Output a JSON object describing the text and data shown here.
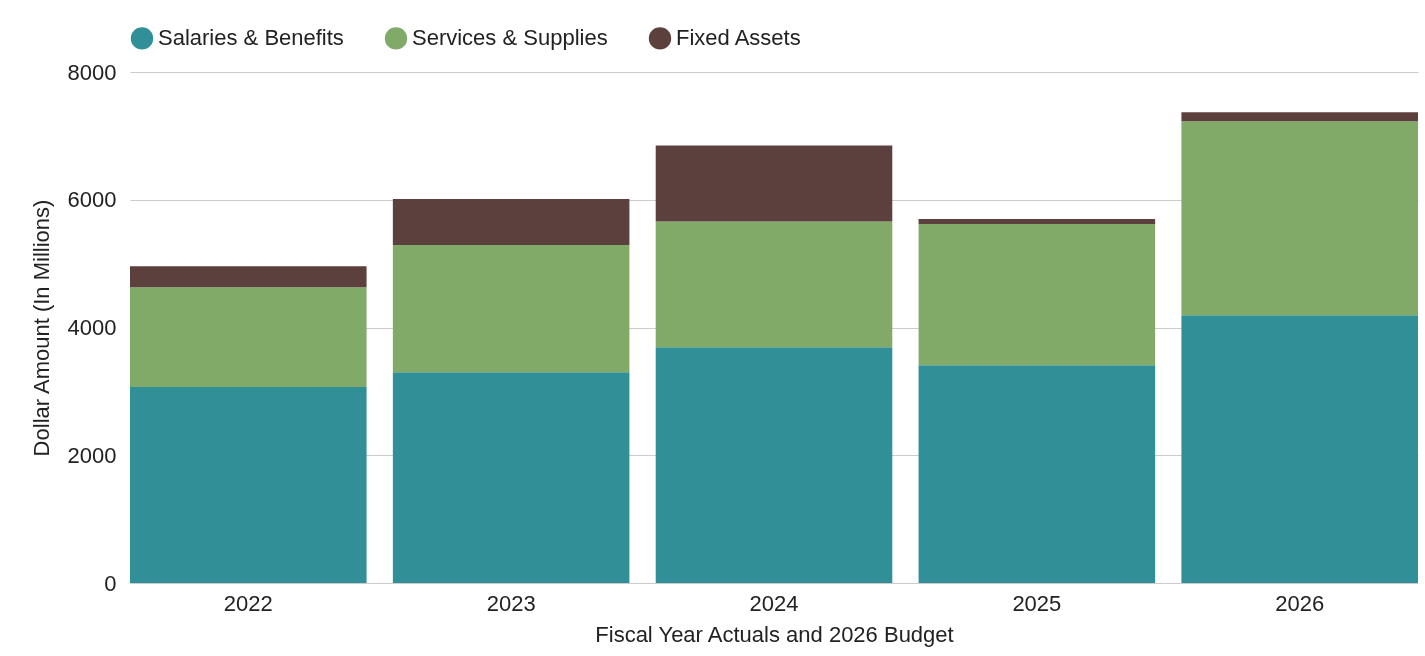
{
  "chart_data": {
    "type": "bar",
    "stacked": true,
    "xlabel": "Fiscal Year Actuals and 2026 Budget",
    "ylabel": "Dollar Amount (In Millions)",
    "categories": [
      "2022",
      "2023",
      "2024",
      "2025",
      "2026"
    ],
    "series": [
      {
        "name": "Salaries & Benefits",
        "color": "#318f98",
        "values": [
          3070,
          3300,
          3690,
          3410,
          4190
        ]
      },
      {
        "name": "Services & Supplies",
        "color": "#81a967",
        "values": [
          1560,
          1990,
          1970,
          2210,
          3040
        ]
      },
      {
        "name": "Fixed Assets",
        "color": "#5c403d",
        "values": [
          330,
          720,
          1190,
          80,
          140
        ]
      }
    ],
    "ylim": [
      0,
      8000
    ],
    "yticks": [
      0,
      2000,
      4000,
      6000,
      8000
    ],
    "grid": "y",
    "legend": "top"
  }
}
